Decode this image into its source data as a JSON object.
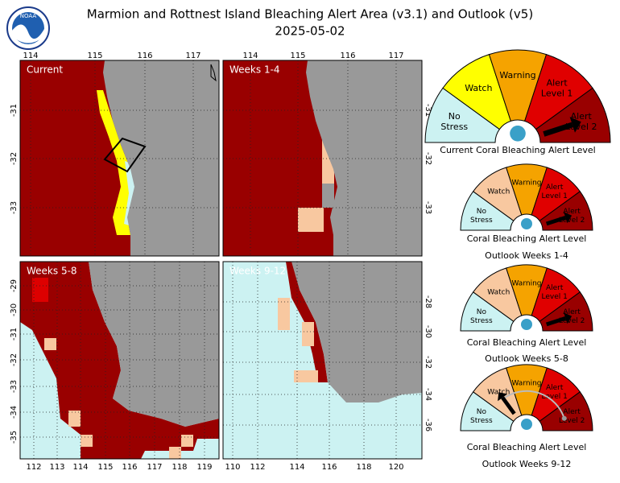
{
  "header": {
    "title": "Marmion and Rottnest Island Bleaching Alert Area (v3.1) and Outlook (v5)",
    "date": "2025-05-02"
  },
  "panels": [
    {
      "label": "Current",
      "top_ticks": [
        "114",
        "115",
        "116",
        "117"
      ],
      "side_ticks": [
        "-31",
        "-32",
        "-33"
      ]
    },
    {
      "label": "Weeks 1-4",
      "top_ticks": [
        "114",
        "115",
        "116",
        "117"
      ],
      "side_ticks": [
        "-31",
        "-32",
        "-33"
      ]
    },
    {
      "label": "Weeks 5-8",
      "side_ticks": [
        "-29",
        "-30",
        "-31",
        "-32",
        "-33",
        "-34",
        "-35"
      ],
      "bottom_ticks": [
        "112",
        "113",
        "114",
        "115",
        "116",
        "117",
        "118",
        "119"
      ]
    },
    {
      "label": "Weeks 9-12",
      "side_ticks": [
        "-28",
        "-30",
        "-32",
        "-34",
        "-36"
      ],
      "bottom_ticks": [
        "110",
        "112",
        "114",
        "116",
        "118",
        "120"
      ]
    }
  ],
  "gauges": [
    {
      "levels": [
        [
          "No",
          "Stress"
        ],
        [
          "Watch"
        ],
        [
          "Warning"
        ],
        [
          "Alert",
          "Level 1"
        ],
        [
          "Alert",
          "Level 2"
        ]
      ],
      "caption": "Current Coral Bleaching Alert Level"
    },
    {
      "levels": [
        [
          "No",
          "Stress"
        ],
        [
          "Watch"
        ],
        [
          "Warning"
        ],
        [
          "Alert",
          "Level 1"
        ],
        [
          "Alert",
          "Level 2"
        ]
      ],
      "caption": "Coral Bleaching Alert Level",
      "subcaption": "Outlook Weeks 1-4"
    },
    {
      "levels": [
        [
          "No",
          "Stress"
        ],
        [
          "Watch"
        ],
        [
          "Warning"
        ],
        [
          "Alert",
          "Level 1"
        ],
        [
          "Alert",
          "Level 2"
        ]
      ],
      "caption": "Coral Bleaching Alert Level",
      "subcaption": "Outlook Weeks 5-8"
    },
    {
      "levels": [
        [
          "No",
          "Stress"
        ],
        [
          "Watch"
        ],
        [
          "Warning"
        ],
        [
          "Alert",
          "Level 1"
        ],
        [
          "Alert",
          "Level 2"
        ]
      ],
      "caption": "Coral Bleaching Alert Level",
      "subcaption": "Outlook Weeks 9-12"
    }
  ]
}
